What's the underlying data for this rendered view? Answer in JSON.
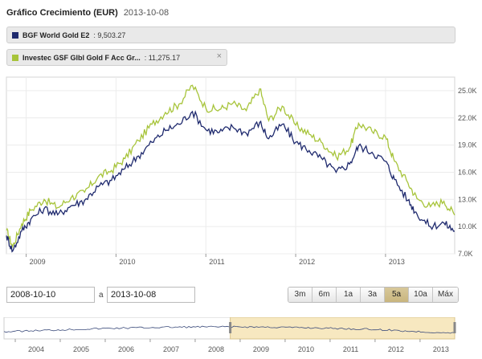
{
  "header": {
    "title": "Gráfico Crecimiento (EUR)",
    "date": "2013-10-08"
  },
  "legend": [
    {
      "name": "BGF World Gold E2",
      "value": ": 9,503.27",
      "color": "#1f2a6e"
    },
    {
      "name": "Investec GSF Glbl Gold F Acc Gr...",
      "value": ": 11,275.17",
      "color": "#a7c43a",
      "close": "×"
    }
  ],
  "range": {
    "from": "2008-10-10",
    "sep": "a",
    "to": "2013-10-08"
  },
  "buttons": [
    {
      "label": "3m",
      "active": false
    },
    {
      "label": "6m",
      "active": false
    },
    {
      "label": "1a",
      "active": false
    },
    {
      "label": "3a",
      "active": false
    },
    {
      "label": "5a",
      "active": true
    },
    {
      "label": "10a",
      "active": false
    },
    {
      "label": "Máx",
      "active": false
    }
  ],
  "chart_data": {
    "type": "line",
    "x_start": 2008.78,
    "x_end": 2013.77,
    "ylim": [
      7000,
      26500
    ],
    "y_ticks": [
      "25.0K",
      "22.0K",
      "19.0K",
      "16.0K",
      "13.0K",
      "10.0K",
      "7.0K"
    ],
    "y_tick_values": [
      25000,
      22000,
      19000,
      16000,
      13000,
      10000,
      7000
    ],
    "x_ticks": [
      "2009",
      "2010",
      "2011",
      "2012",
      "2013"
    ],
    "x_tick_values": [
      2009,
      2010,
      2011,
      2012,
      2013
    ],
    "series": [
      {
        "name": "BGF World Gold E2",
        "color": "#1f2a6e",
        "x": [
          2008.78,
          2008.85,
          2008.95,
          2009.05,
          2009.2,
          2009.35,
          2009.5,
          2009.65,
          2009.8,
          2009.95,
          2010.1,
          2010.25,
          2010.4,
          2010.55,
          2010.7,
          2010.85,
          2011.0,
          2011.15,
          2011.3,
          2011.45,
          2011.6,
          2011.7,
          2011.85,
          2012.0,
          2012.15,
          2012.3,
          2012.45,
          2012.6,
          2012.7,
          2012.85,
          2013.0,
          2013.1,
          2013.25,
          2013.35,
          2013.5,
          2013.65,
          2013.77
        ],
        "values": [
          9000,
          7300,
          9500,
          10800,
          12000,
          11300,
          12300,
          12900,
          14400,
          15100,
          16400,
          17800,
          19300,
          20600,
          21300,
          22700,
          20700,
          20400,
          21000,
          20300,
          21500,
          19700,
          21300,
          19300,
          18400,
          17400,
          16000,
          16900,
          18900,
          18200,
          17200,
          15200,
          12900,
          11400,
          10000,
          10400,
          9503
        ]
      },
      {
        "name": "Investec GSF Glbl Gold F Acc Gr...",
        "color": "#a7c43a",
        "x": [
          2008.78,
          2008.85,
          2008.95,
          2009.05,
          2009.2,
          2009.35,
          2009.5,
          2009.65,
          2009.8,
          2009.95,
          2010.1,
          2010.25,
          2010.4,
          2010.55,
          2010.7,
          2010.85,
          2011.0,
          2011.15,
          2011.3,
          2011.45,
          2011.6,
          2011.7,
          2011.85,
          2012.0,
          2012.15,
          2012.3,
          2012.45,
          2012.6,
          2012.7,
          2012.85,
          2013.0,
          2013.1,
          2013.25,
          2013.35,
          2013.5,
          2013.65,
          2013.77
        ],
        "values": [
          9600,
          7800,
          10300,
          11800,
          13000,
          12100,
          13200,
          13800,
          15500,
          16200,
          17500,
          19500,
          21300,
          22600,
          23500,
          25600,
          23100,
          22900,
          23600,
          22800,
          25200,
          21700,
          23300,
          21200,
          20200,
          19200,
          17700,
          18700,
          21400,
          20500,
          19900,
          17200,
          14800,
          13100,
          12200,
          12800,
          11275
        ]
      }
    ]
  },
  "navigator": {
    "years": [
      "2004",
      "2005",
      "2006",
      "2007",
      "2008",
      "2009",
      "2010",
      "2011",
      "2012",
      "2013"
    ],
    "selection": [
      2008.78,
      2013.77
    ]
  }
}
